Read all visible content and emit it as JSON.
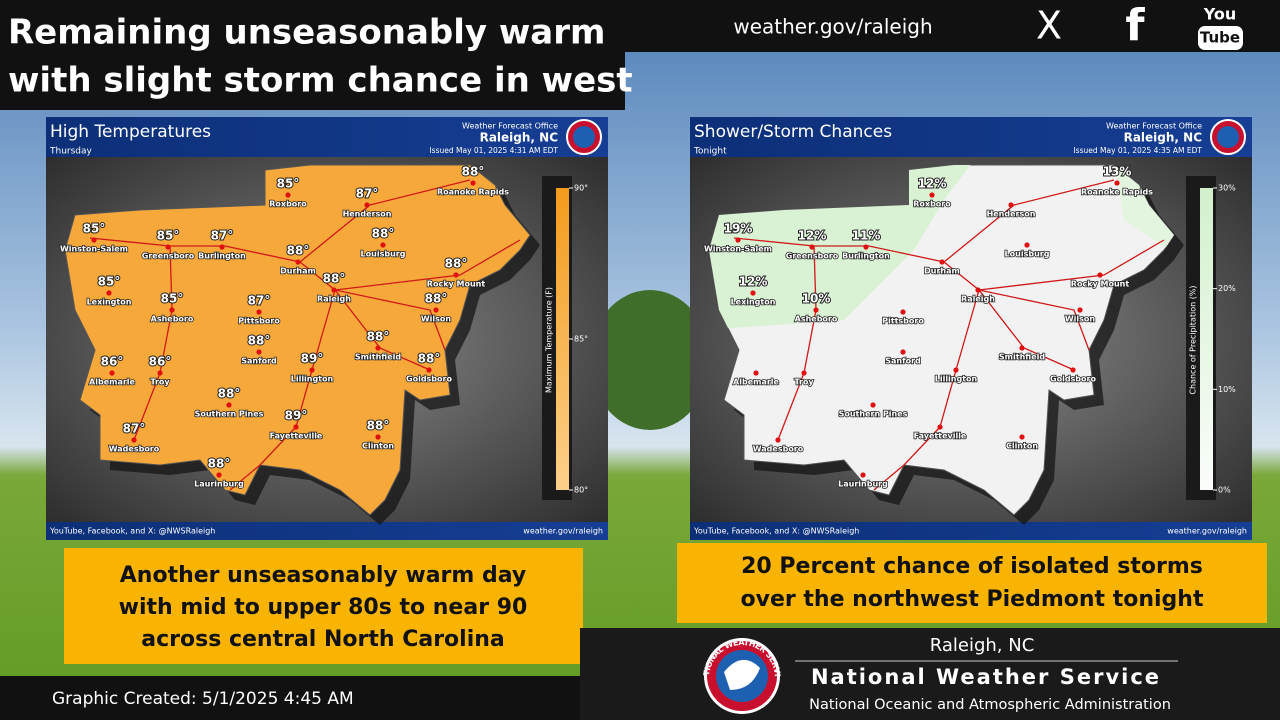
{
  "header": {
    "title_lines": [
      "Remaining unseasonably warm",
      "with slight storm chance in west"
    ],
    "website": "weather.gov/raleigh",
    "social": [
      "X",
      "f",
      "You",
      "Tube"
    ]
  },
  "maps": [
    {
      "title": "High Temperatures",
      "subtitle": "Thursday",
      "office": "Weather Forecast Office",
      "office_city": "Raleigh, NC",
      "issued": "Issued May 01, 2025 4:31 AM EDT",
      "footer_left": "YouTube, Facebook, and X: @NWSRaleigh",
      "footer_right": "weather.gov/raleigh",
      "legend": {
        "label": "Maximum Temperature (F)",
        "lim": [
          80,
          90
        ],
        "ticks": [
          {
            "value": 90,
            "label": "90°"
          },
          {
            "value": 85,
            "label": "85°"
          },
          {
            "value": 80,
            "label": "80°"
          }
        ]
      },
      "cities": [
        {
          "name": "Roxboro",
          "value": 85,
          "value_label": "85°"
        },
        {
          "name": "Roanoke Rapids",
          "value": 88,
          "value_label": "88°"
        },
        {
          "name": "Henderson",
          "value": 87,
          "value_label": "87°"
        },
        {
          "name": "Winston-Salem",
          "value": 85,
          "value_label": "85°"
        },
        {
          "name": "Greensboro",
          "value": 85,
          "value_label": "85°"
        },
        {
          "name": "Burlington",
          "value": 87,
          "value_label": "87°"
        },
        {
          "name": "Durham",
          "value": 88,
          "value_label": "88°"
        },
        {
          "name": "Louisburg",
          "value": 88,
          "value_label": "88°"
        },
        {
          "name": "Rocky Mount",
          "value": 88,
          "value_label": "88°"
        },
        {
          "name": "Raleigh",
          "value": 88,
          "value_label": "88°"
        },
        {
          "name": "Lexington",
          "value": 85,
          "value_label": "85°"
        },
        {
          "name": "Asheboro",
          "value": 85,
          "value_label": "85°"
        },
        {
          "name": "Pittsboro",
          "value": 87,
          "value_label": "87°"
        },
        {
          "name": "Wilson",
          "value": 88,
          "value_label": "88°"
        },
        {
          "name": "Sanford",
          "value": 88,
          "value_label": "88°"
        },
        {
          "name": "Smithfield",
          "value": 88,
          "value_label": "88°"
        },
        {
          "name": "Albemarle",
          "value": 86,
          "value_label": "86°"
        },
        {
          "name": "Troy",
          "value": 86,
          "value_label": "86°"
        },
        {
          "name": "Lillington",
          "value": 89,
          "value_label": "89°"
        },
        {
          "name": "Goldsboro",
          "value": 88,
          "value_label": "88°"
        },
        {
          "name": "Southern Pines",
          "value": 88,
          "value_label": "88°"
        },
        {
          "name": "Wadesboro",
          "value": 87,
          "value_label": "87°"
        },
        {
          "name": "Fayetteville",
          "value": 89,
          "value_label": "89°"
        },
        {
          "name": "Clinton",
          "value": 88,
          "value_label": "88°"
        },
        {
          "name": "Laurinburg",
          "value": 88,
          "value_label": "88°"
        }
      ]
    },
    {
      "title": "Shower/Storm Chances",
      "subtitle": "Tonight",
      "office": "Weather Forecast Office",
      "office_city": "Raleigh, NC",
      "issued": "Issued May 01, 2025 4:35 AM EDT",
      "footer_left": "YouTube, Facebook, and X: @NWSRaleigh",
      "footer_right": "weather.gov/raleigh",
      "legend": {
        "label": "Chance of Precipitation (%)",
        "lim": [
          0,
          30
        ],
        "ticks": [
          {
            "value": 30,
            "label": "30%"
          },
          {
            "value": 20,
            "label": "20%"
          },
          {
            "value": 10,
            "label": "10%"
          },
          {
            "value": 0,
            "label": "0%"
          }
        ]
      },
      "cities": [
        {
          "name": "Roxboro",
          "value": 12,
          "value_label": "12%"
        },
        {
          "name": "Roanoke Rapids",
          "value": 13,
          "value_label": "13%"
        },
        {
          "name": "Henderson",
          "value": null,
          "value_label": null
        },
        {
          "name": "Winston-Salem",
          "value": 19,
          "value_label": "19%"
        },
        {
          "name": "Greensboro",
          "value": 12,
          "value_label": "12%"
        },
        {
          "name": "Burlington",
          "value": 11,
          "value_label": "11%"
        },
        {
          "name": "Durham",
          "value": null,
          "value_label": null
        },
        {
          "name": "Louisburg",
          "value": null,
          "value_label": null
        },
        {
          "name": "Rocky Mount",
          "value": null,
          "value_label": null
        },
        {
          "name": "Raleigh",
          "value": null,
          "value_label": null
        },
        {
          "name": "Lexington",
          "value": 12,
          "value_label": "12%"
        },
        {
          "name": "Asheboro",
          "value": 10,
          "value_label": "10%"
        },
        {
          "name": "Pittsboro",
          "value": null,
          "value_label": null
        },
        {
          "name": "Wilson",
          "value": null,
          "value_label": null
        },
        {
          "name": "Sanford",
          "value": null,
          "value_label": null
        },
        {
          "name": "Smithfield",
          "value": null,
          "value_label": null
        },
        {
          "name": "Albemarle",
          "value": null,
          "value_label": null
        },
        {
          "name": "Troy",
          "value": null,
          "value_label": null
        },
        {
          "name": "Lillington",
          "value": null,
          "value_label": null
        },
        {
          "name": "Goldsboro",
          "value": null,
          "value_label": null
        },
        {
          "name": "Southern Pines",
          "value": null,
          "value_label": null
        },
        {
          "name": "Wadesboro",
          "value": null,
          "value_label": null
        },
        {
          "name": "Fayetteville",
          "value": null,
          "value_label": null
        },
        {
          "name": "Clinton",
          "value": null,
          "value_label": null
        },
        {
          "name": "Laurinburg",
          "value": null,
          "value_label": null
        }
      ]
    }
  ],
  "summaries": [
    [
      "Another unseasonably warm day",
      "with mid to upper 80s to near 90",
      "across central North Carolina"
    ],
    [
      "20 Percent chance of isolated storms",
      "over the northwest Piedmont tonight"
    ]
  ],
  "footer": {
    "created": "Graphic Created: 5/1/2025 4:45 AM",
    "office_city": "Raleigh, NC",
    "agency": "National Weather Service",
    "parent": "National Oceanic and Atmospheric Administration",
    "logo_text": "NATIONAL WEATHER SERVICE"
  }
}
